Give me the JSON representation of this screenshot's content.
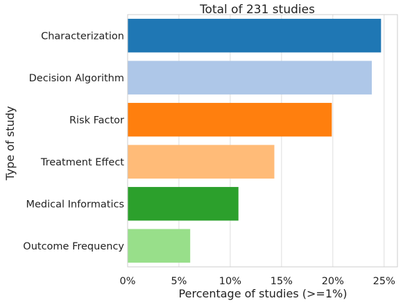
{
  "chart_data": {
    "type": "bar",
    "orientation": "horizontal",
    "title": "Total of 231 studies",
    "xlabel": "Percentage of studies (>=1%)",
    "ylabel": "Type of study",
    "categories": [
      "Characterization",
      "Decision Algorithm",
      "Risk Factor",
      "Treatment Effect",
      "Medical Informatics",
      "Outcome Frequency"
    ],
    "values": [
      24.7,
      23.8,
      19.9,
      14.3,
      10.8,
      6.1
    ],
    "colors": [
      "#1f77b4",
      "#aec7e8",
      "#ff7f0e",
      "#ffbb78",
      "#2ca02c",
      "#98df8a"
    ],
    "xlim": [
      0,
      26.3
    ],
    "xticks": [
      0,
      5,
      10,
      15,
      20,
      25
    ],
    "xtick_labels": [
      "0%",
      "5%",
      "10%",
      "15%",
      "20%",
      "25%"
    ],
    "grid": "vertical"
  }
}
